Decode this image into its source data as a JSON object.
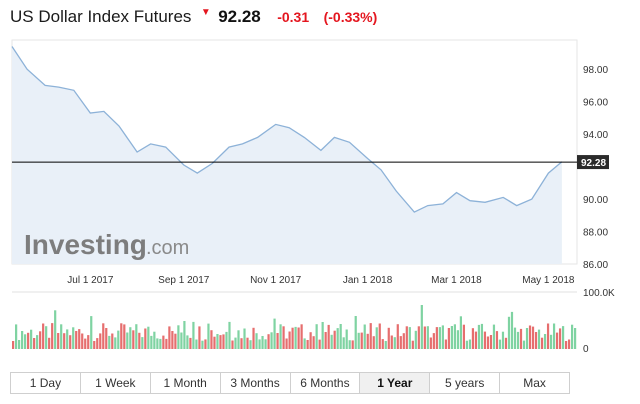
{
  "header": {
    "title": "US Dollar Index Futures",
    "direction_icon": "down-triangle-icon",
    "price": "92.28",
    "change": "-0.31",
    "change_pct": "(-0.33%)",
    "change_color": "#e4161f"
  },
  "watermark": {
    "brand": "Investing",
    "suffix": ".com"
  },
  "tabs": [
    {
      "label": "1 Day",
      "active": false
    },
    {
      "label": "1 Week",
      "active": false
    },
    {
      "label": "1 Month",
      "active": false
    },
    {
      "label": "3 Months",
      "active": false
    },
    {
      "label": "6 Months",
      "active": false
    },
    {
      "label": "1 Year",
      "active": true
    },
    {
      "label": "5 years",
      "active": false
    },
    {
      "label": "Max",
      "active": false
    }
  ],
  "colors": {
    "line": "#8db2d8",
    "area": "#e9f0f8",
    "volume_up": "#7fd3a2",
    "volume_down": "#e66e6e",
    "current_price_line": "#000000",
    "current_price_label_bg": "#2b2b2b"
  },
  "chart_data": [
    {
      "type": "area",
      "series": [
        {
          "name": "US Dollar Index Futures"
        }
      ],
      "x": [
        "2017-05-10",
        "2017-05-20",
        "2017-06-01",
        "2017-06-10",
        "2017-06-20",
        "2017-07-01",
        "2017-07-10",
        "2017-07-20",
        "2017-08-01",
        "2017-08-10",
        "2017-08-20",
        "2017-09-01",
        "2017-09-10",
        "2017-09-20",
        "2017-10-01",
        "2017-10-10",
        "2017-10-20",
        "2017-11-01",
        "2017-11-10",
        "2017-11-20",
        "2017-12-01",
        "2017-12-10",
        "2017-12-20",
        "2018-01-01",
        "2018-01-10",
        "2018-01-20",
        "2018-02-01",
        "2018-02-10",
        "2018-02-20",
        "2018-03-01",
        "2018-03-10",
        "2018-03-20",
        "2018-04-01",
        "2018-04-10",
        "2018-04-20",
        "2018-05-01",
        "2018-05-10"
      ],
      "y": [
        99.4,
        98.0,
        97.0,
        96.9,
        96.7,
        95.3,
        95.4,
        94.5,
        92.9,
        93.4,
        93.2,
        92.1,
        91.6,
        92.2,
        93.2,
        93.4,
        93.8,
        94.6,
        94.4,
        93.8,
        93.0,
        93.8,
        93.5,
        92.5,
        91.8,
        90.5,
        89.2,
        89.6,
        89.7,
        90.4,
        89.9,
        89.8,
        90.1,
        89.6,
        90.0,
        91.6,
        92.3
      ],
      "current_price": 92.28,
      "current_price_label": "92.28",
      "xtick_labels": [
        "Jul 1 2017",
        "Sep 1 2017",
        "Nov 1 2017",
        "Jan 1 2018",
        "Mar 1 2018",
        "May 1 2018"
      ],
      "yticks": [
        86.0,
        88.0,
        90.0,
        92.0,
        94.0,
        96.0,
        98.0
      ],
      "ytick_labels": [
        "86.00",
        "88.00",
        "90.00",
        "",
        "94.00",
        "96.00",
        "98.00"
      ],
      "ylim": [
        86.0,
        99.8
      ],
      "xlim": [
        "2017-05-10",
        "2018-05-20"
      ],
      "grid": false
    },
    {
      "type": "bar",
      "series": [
        {
          "name": "Volume"
        }
      ],
      "y_axis_labels": [
        "100.0K",
        "0"
      ],
      "ylim": [
        0,
        100000
      ]
    }
  ]
}
